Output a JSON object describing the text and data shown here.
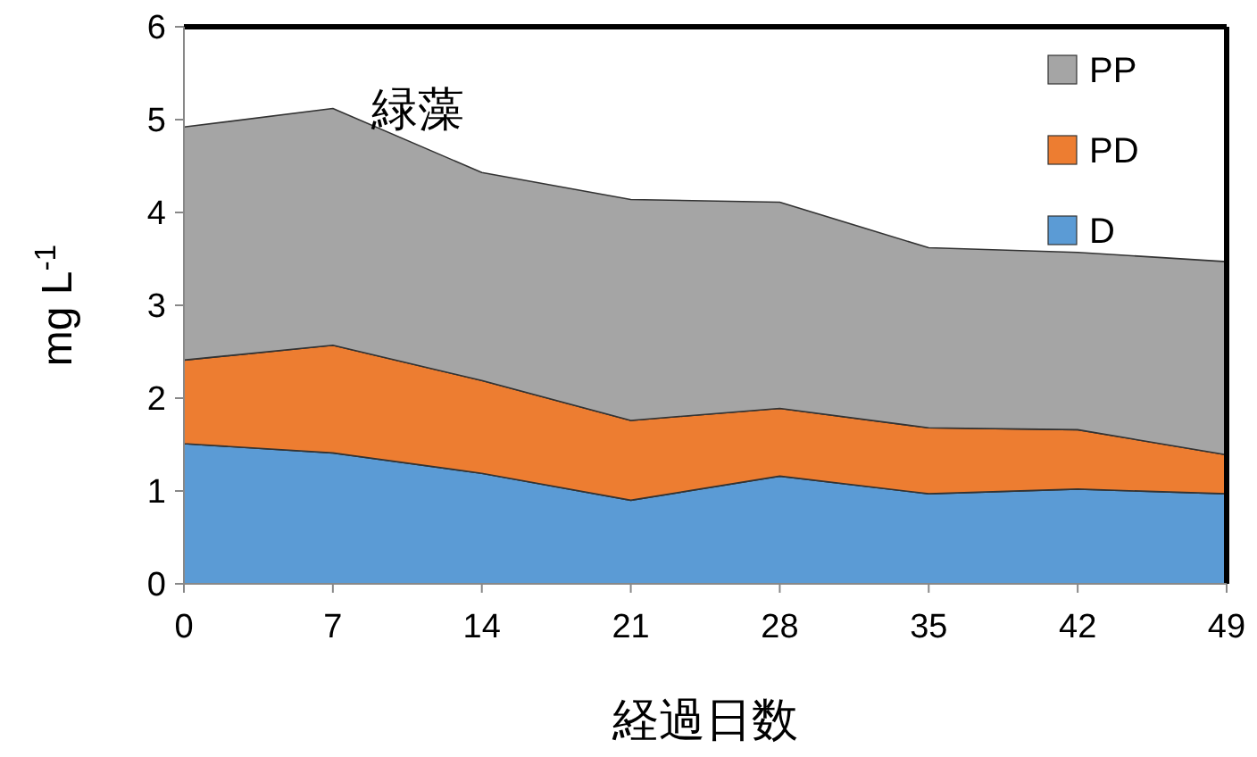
{
  "chart_data": {
    "type": "area",
    "stacked": true,
    "xlabel": "経過日数",
    "ylabel": "mg L$^{-1}$",
    "annotations": [
      "緑藻"
    ],
    "x": [
      0,
      7,
      14,
      21,
      28,
      35,
      42,
      49
    ],
    "xlim": [
      0,
      49
    ],
    "xticks": [
      0,
      7,
      14,
      21,
      28,
      35,
      42,
      49
    ],
    "ylim": [
      0,
      6
    ],
    "yticks": [
      0,
      1,
      2,
      3,
      4,
      5,
      6
    ],
    "legend": "top right",
    "series": [
      {
        "name": "D",
        "color": "#5b9bd5",
        "values": [
          1.51,
          1.41,
          1.19,
          0.9,
          1.16,
          0.97,
          1.02,
          0.97
        ]
      },
      {
        "name": "PD",
        "color": "#ed7d31",
        "values": [
          0.9,
          1.16,
          1.0,
          0.86,
          0.73,
          0.71,
          0.64,
          0.42
        ]
      },
      {
        "name": "PP",
        "color": "#a5a5a5",
        "values": [
          2.51,
          2.55,
          2.24,
          2.38,
          2.22,
          1.94,
          1.91,
          2.08
        ]
      }
    ]
  }
}
